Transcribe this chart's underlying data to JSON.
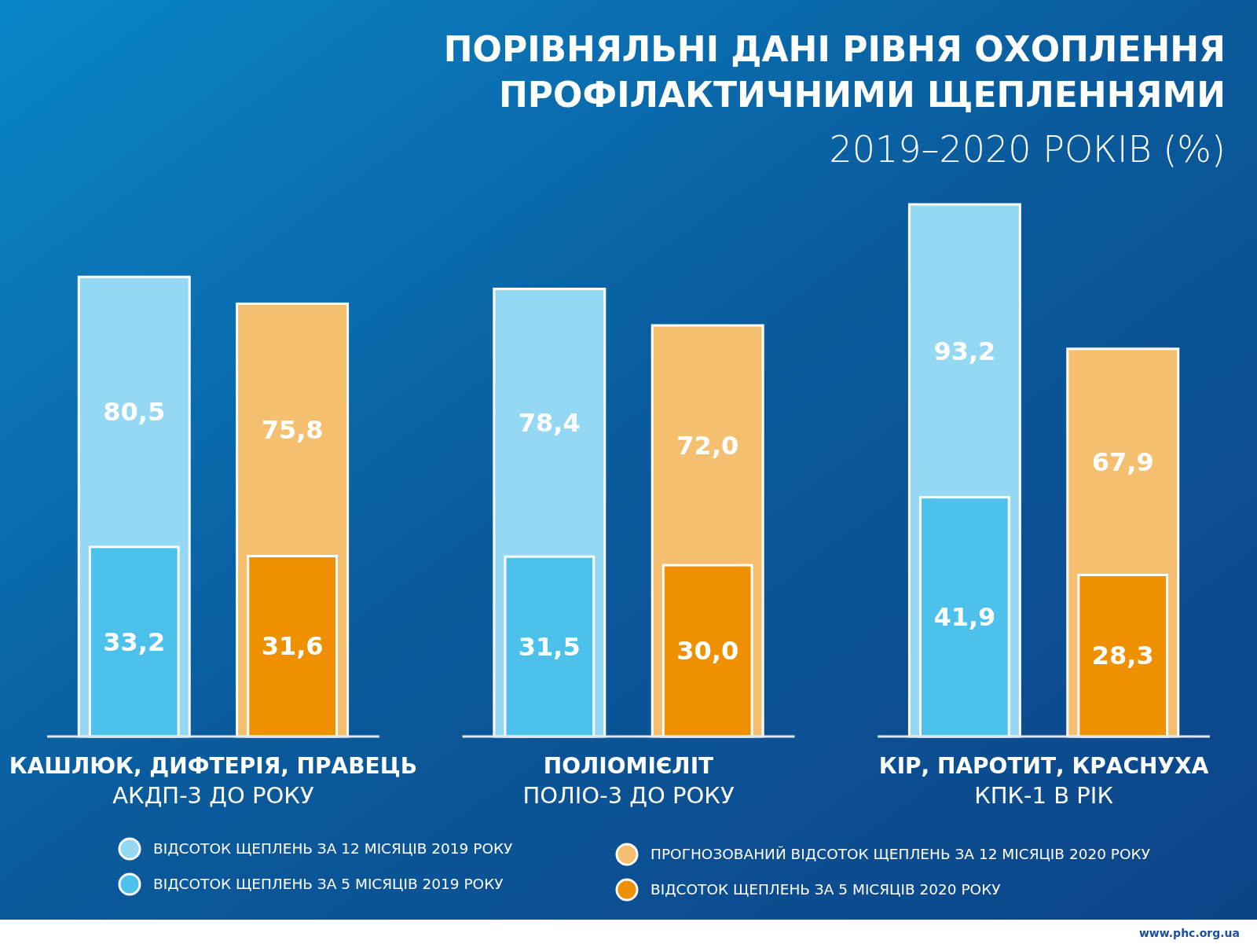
{
  "chart_data": {
    "type": "bar",
    "title": "ПОРІВНЯЛЬНІ ДАНІ РІВНЯ ОХОПЛЕННЯ ПРОФІЛАКТИЧНИМИ ЩЕПЛЕННЯМИ",
    "subtitle": "2019–2020 РОКІВ (%)",
    "categories": [
      "КАШЛЮК, ДИФТЕРІЯ, ПРАВЕЦЬ\nАКДП-3 ДО РОКУ",
      "ПОЛІОМІЄЛІТ\nПОЛІО-3 ДО РОКУ",
      "КІР, ПАРОТИТ, КРАСНУХА\nКПК-1 В РІК"
    ],
    "series": [
      {
        "name": "ВІДСОТОК ЩЕПЛЕНЬ ЗА 12 МІСЯЦІВ 2019 РОКУ",
        "color": "#95d8f3",
        "values": [
          80.5,
          78.4,
          93.2
        ],
        "value_labels": [
          "80,5",
          "78,4",
          "93,2"
        ]
      },
      {
        "name": "ВІДСОТОК ЩЕПЛЕНЬ ЗА 5 МІСЯЦІВ 2019 РОКУ",
        "color": "#4bc1ec",
        "values": [
          33.2,
          31.5,
          41.9
        ],
        "value_labels": [
          "33,2",
          "31,5",
          "41,9"
        ]
      },
      {
        "name": "ПРОГНОЗОВАНИЙ ВІДСОТОК ЩЕПЛЕНЬ ЗА 12 МІСЯЦІВ 2020 РОКУ",
        "color": "#f4bf6e",
        "values": [
          75.8,
          72.0,
          67.9
        ],
        "value_labels": [
          "75,8",
          "72,0",
          "67,9"
        ]
      },
      {
        "name": "ВІДСОТОК ЩЕПЛЕНЬ ЗА 5 МІСЯЦІВ 2020 РОКУ",
        "color": "#ef9000",
        "values": [
          31.6,
          30.0,
          28.3
        ],
        "value_labels": [
          "31,6",
          "30,0",
          "28,3"
        ]
      }
    ],
    "legend": "bottom",
    "annotations": [
      "www.phc.org.ua"
    ]
  }
}
